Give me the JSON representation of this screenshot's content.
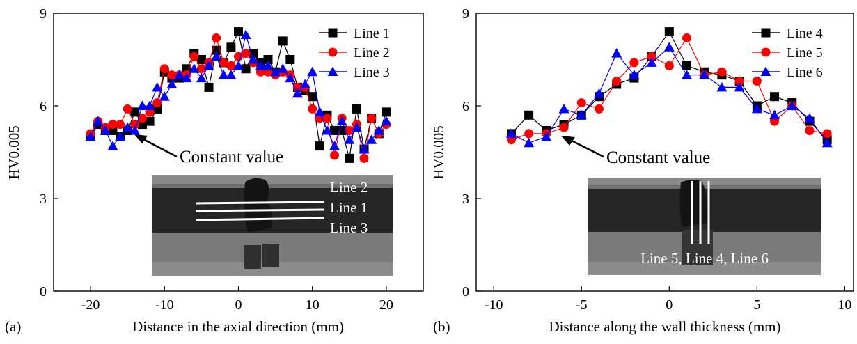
{
  "chart_data": [
    {
      "type": "line",
      "panel_label": "(a)",
      "xlabel": "Distance in the axial direction (mm)",
      "ylabel": "HV0.005",
      "xlim": [
        -25,
        25
      ],
      "ylim": [
        0,
        9
      ],
      "xticks": [
        -20,
        -10,
        0,
        10,
        20
      ],
      "yticks": [
        0,
        3,
        6,
        9
      ],
      "legend_position": "top-right",
      "x": [
        -20,
        -19,
        -18,
        -17,
        -16,
        -15,
        -14,
        -13,
        -12,
        -11,
        -10,
        -9,
        -8,
        -7,
        -6,
        -5,
        -4,
        -3,
        -2,
        -1,
        0,
        1,
        2,
        3,
        4,
        5,
        6,
        7,
        8,
        9,
        10,
        11,
        12,
        13,
        14,
        15,
        16,
        17,
        18,
        19,
        20
      ],
      "series": [
        {
          "name": "Line 1",
          "color": "#000000",
          "marker": "square",
          "values": [
            5.0,
            5.4,
            5.2,
            5.2,
            5.0,
            5.2,
            5.8,
            5.4,
            5.5,
            5.9,
            7.1,
            6.9,
            6.9,
            7.2,
            7.7,
            7.5,
            6.6,
            7.8,
            7.4,
            7.9,
            8.4,
            7.2,
            7.7,
            7.4,
            7.5,
            7.1,
            8.1,
            7.5,
            6.6,
            6.5,
            6.3,
            4.7,
            5.7,
            5.2,
            5.2,
            4.3,
            5.9,
            4.6,
            5.6,
            5.1,
            5.8
          ]
        },
        {
          "name": "Line 2",
          "color": "#ff0000",
          "marker": "circle",
          "values": [
            5.1,
            5.5,
            5.3,
            5.4,
            5.4,
            5.9,
            5.4,
            5.6,
            5.8,
            6.1,
            7.2,
            7.0,
            7.0,
            7.0,
            7.6,
            7.2,
            7.4,
            8.2,
            7.4,
            7.3,
            7.6,
            7.7,
            7.4,
            7.1,
            7.1,
            7.0,
            7.1,
            7.0,
            6.6,
            6.6,
            5.9,
            5.6,
            5.6,
            4.4,
            5.6,
            5.2,
            5.4,
            4.3,
            5.6,
            5.1,
            5.4
          ]
        },
        {
          "name": "Line 3",
          "color": "#0000ff",
          "marker": "triangle",
          "values": [
            5.0,
            5.5,
            5.2,
            4.7,
            5.0,
            5.3,
            5.2,
            6.0,
            6.0,
            6.6,
            6.3,
            6.7,
            7.0,
            6.9,
            7.2,
            6.9,
            7.3,
            7.6,
            7.0,
            7.0,
            7.3,
            8.3,
            7.5,
            7.3,
            7.3,
            7.1,
            7.2,
            6.9,
            6.4,
            6.7,
            7.1,
            5.8,
            5.2,
            4.7,
            5.5,
            4.9,
            5.3,
            4.6,
            4.9,
            5.2,
            5.5
          ]
        }
      ],
      "annotation": "Constant value",
      "photo_labels": [
        "Line 2",
        "Line 1",
        "Line 3"
      ]
    },
    {
      "type": "line",
      "panel_label": "(b)",
      "xlabel": "Distance along the wall thickness (mm)",
      "ylabel": "HV0.005",
      "xlim": [
        -11,
        10.5
      ],
      "ylim": [
        0,
        9
      ],
      "xticks": [
        -10,
        -5,
        0,
        5,
        10
      ],
      "yticks": [
        0,
        3,
        6,
        9
      ],
      "legend_position": "top-right",
      "x": [
        -9,
        -8,
        -7,
        -6,
        -5,
        -4,
        -3,
        -2,
        -1,
        0,
        1,
        2,
        3,
        4,
        5,
        6,
        7,
        8,
        9
      ],
      "series": [
        {
          "name": "Line 4",
          "color": "#000000",
          "marker": "square",
          "values": [
            5.1,
            5.7,
            5.2,
            5.4,
            5.7,
            6.3,
            6.7,
            6.9,
            7.6,
            8.4,
            7.3,
            7.1,
            7.0,
            6.8,
            6.0,
            6.3,
            6.1,
            5.5,
            4.9
          ]
        },
        {
          "name": "Line 5",
          "color": "#ff0000",
          "marker": "circle",
          "values": [
            4.9,
            5.1,
            5.1,
            5.3,
            6.1,
            5.9,
            6.8,
            7.4,
            7.6,
            7.3,
            8.2,
            7.0,
            7.1,
            6.8,
            6.8,
            5.5,
            6.0,
            5.2,
            5.1
          ]
        },
        {
          "name": "Line 6",
          "color": "#0000ff",
          "marker": "triangle",
          "values": [
            5.1,
            4.8,
            5.0,
            5.9,
            5.7,
            6.4,
            7.7,
            7.0,
            7.4,
            7.9,
            7.0,
            7.0,
            6.6,
            6.6,
            5.9,
            5.7,
            6.0,
            5.6,
            4.8
          ]
        }
      ],
      "annotation": "Constant value",
      "photo_labels": [
        "Line 5, Line 4, Line 6"
      ]
    }
  ]
}
